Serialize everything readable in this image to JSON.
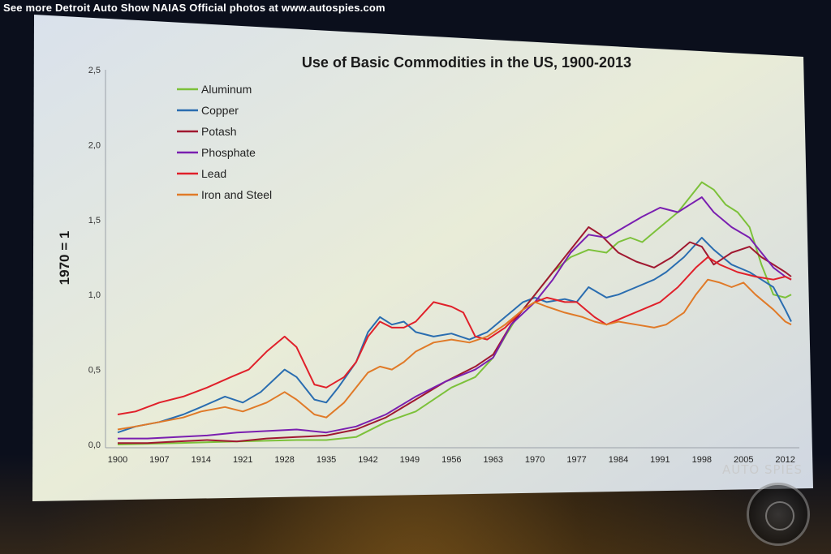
{
  "photo_credit": "See more Detroit Auto Show NAIAS Official photos at www.autospies.com",
  "watermark": "AUTO SPIES",
  "colors": {
    "aluminum": "#7cc13a",
    "copper": "#2a6db0",
    "potash": "#a01830",
    "phosphate": "#7a1fb0",
    "lead": "#e0202a",
    "iron_steel": "#e07a28"
  },
  "chart_data": {
    "type": "line",
    "title": "Use of Basic Commodities in the US, 1900-2013",
    "xlabel": "",
    "ylabel": "1970 = 1",
    "ylim": [
      0,
      2.5
    ],
    "xlim": [
      1900,
      2013
    ],
    "y_ticks": [
      "0,0",
      "0,5",
      "1,0",
      "1,5",
      "2,0",
      "2,5"
    ],
    "x_ticks": [
      "1900",
      "1907",
      "1914",
      "1921",
      "1928",
      "1935",
      "1942",
      "1949",
      "1956",
      "1963",
      "1970",
      "1977",
      "1984",
      "1991",
      "1998",
      "2005",
      "2012"
    ],
    "legend_position": "top-left",
    "grid": false,
    "series": [
      {
        "name": "Aluminum",
        "color_key": "aluminum",
        "x": [
          1900,
          1910,
          1920,
          1930,
          1935,
          1940,
          1945,
          1950,
          1953,
          1956,
          1960,
          1963,
          1965,
          1967,
          1970,
          1973,
          1976,
          1979,
          1982,
          1984,
          1986,
          1988,
          1991,
          1994,
          1996,
          1998,
          2000,
          2002,
          2004,
          2006,
          2008,
          2010,
          2012,
          2013
        ],
        "y": [
          0.0,
          0.01,
          0.02,
          0.03,
          0.03,
          0.05,
          0.15,
          0.22,
          0.3,
          0.38,
          0.45,
          0.58,
          0.72,
          0.85,
          1.0,
          1.15,
          1.25,
          1.3,
          1.28,
          1.35,
          1.38,
          1.35,
          1.45,
          1.55,
          1.65,
          1.75,
          1.7,
          1.6,
          1.55,
          1.45,
          1.2,
          1.0,
          0.98,
          1.0
        ]
      },
      {
        "name": "Copper",
        "color_key": "copper",
        "x": [
          1900,
          1903,
          1907,
          1911,
          1914,
          1918,
          1921,
          1924,
          1928,
          1930,
          1933,
          1935,
          1937,
          1940,
          1942,
          1944,
          1946,
          1948,
          1950,
          1953,
          1956,
          1959,
          1962,
          1965,
          1968,
          1970,
          1972,
          1975,
          1977,
          1979,
          1982,
          1984,
          1987,
          1990,
          1992,
          1995,
          1998,
          2000,
          2003,
          2006,
          2008,
          2010,
          2012,
          2013
        ],
        "y": [
          0.08,
          0.12,
          0.15,
          0.2,
          0.25,
          0.32,
          0.28,
          0.35,
          0.5,
          0.45,
          0.3,
          0.28,
          0.38,
          0.55,
          0.75,
          0.85,
          0.8,
          0.82,
          0.75,
          0.72,
          0.74,
          0.7,
          0.75,
          0.85,
          0.95,
          0.98,
          0.95,
          0.97,
          0.95,
          1.05,
          0.98,
          1.0,
          1.05,
          1.1,
          1.15,
          1.25,
          1.38,
          1.3,
          1.2,
          1.15,
          1.1,
          1.05,
          0.9,
          0.82
        ]
      },
      {
        "name": "Potash",
        "color_key": "potash",
        "x": [
          1900,
          1905,
          1910,
          1915,
          1920,
          1925,
          1930,
          1935,
          1940,
          1945,
          1950,
          1955,
          1960,
          1963,
          1966,
          1970,
          1973,
          1976,
          1979,
          1981,
          1984,
          1987,
          1990,
          1993,
          1996,
          1998,
          2000,
          2003,
          2006,
          2008,
          2010,
          2012,
          2013
        ],
        "y": [
          0.01,
          0.01,
          0.02,
          0.03,
          0.02,
          0.04,
          0.05,
          0.06,
          0.1,
          0.18,
          0.3,
          0.42,
          0.52,
          0.6,
          0.8,
          1.0,
          1.15,
          1.3,
          1.45,
          1.4,
          1.28,
          1.22,
          1.18,
          1.25,
          1.35,
          1.32,
          1.2,
          1.28,
          1.32,
          1.25,
          1.2,
          1.15,
          1.12
        ]
      },
      {
        "name": "Phosphate",
        "color_key": "phosphate",
        "x": [
          1900,
          1905,
          1910,
          1915,
          1920,
          1925,
          1930,
          1935,
          1940,
          1945,
          1950,
          1955,
          1960,
          1963,
          1966,
          1970,
          1973,
          1976,
          1979,
          1982,
          1985,
          1988,
          1991,
          1994,
          1996,
          1998,
          2000,
          2003,
          2006,
          2008,
          2010,
          2012,
          2013
        ],
        "y": [
          0.04,
          0.04,
          0.05,
          0.06,
          0.08,
          0.09,
          0.1,
          0.08,
          0.12,
          0.2,
          0.32,
          0.42,
          0.5,
          0.58,
          0.8,
          0.95,
          1.1,
          1.28,
          1.4,
          1.38,
          1.45,
          1.52,
          1.58,
          1.55,
          1.6,
          1.65,
          1.55,
          1.45,
          1.38,
          1.28,
          1.18,
          1.12,
          1.1
        ]
      },
      {
        "name": "Lead",
        "color_key": "lead",
        "x": [
          1900,
          1903,
          1907,
          1911,
          1915,
          1919,
          1922,
          1925,
          1928,
          1930,
          1933,
          1935,
          1938,
          1940,
          1942,
          1944,
          1946,
          1948,
          1950,
          1953,
          1956,
          1958,
          1960,
          1962,
          1965,
          1968,
          1970,
          1972,
          1975,
          1977,
          1980,
          1982,
          1985,
          1988,
          1991,
          1994,
          1997,
          1999,
          2001,
          2004,
          2007,
          2010,
          2012,
          2013
        ],
        "y": [
          0.2,
          0.22,
          0.28,
          0.32,
          0.38,
          0.45,
          0.5,
          0.62,
          0.72,
          0.65,
          0.4,
          0.38,
          0.45,
          0.55,
          0.72,
          0.82,
          0.78,
          0.78,
          0.82,
          0.95,
          0.92,
          0.88,
          0.72,
          0.7,
          0.78,
          0.9,
          0.95,
          0.98,
          0.95,
          0.95,
          0.85,
          0.8,
          0.85,
          0.9,
          0.95,
          1.05,
          1.18,
          1.25,
          1.2,
          1.15,
          1.12,
          1.1,
          1.12,
          1.1
        ]
      },
      {
        "name": "Iron and Steel",
        "color_key": "iron_steel",
        "x": [
          1900,
          1903,
          1907,
          1911,
          1914,
          1918,
          1921,
          1925,
          1928,
          1930,
          1933,
          1935,
          1938,
          1940,
          1942,
          1944,
          1946,
          1948,
          1950,
          1953,
          1956,
          1959,
          1962,
          1965,
          1968,
          1970,
          1972,
          1975,
          1978,
          1980,
          1982,
          1984,
          1987,
          1990,
          1992,
          1995,
          1997,
          1999,
          2001,
          2003,
          2005,
          2007,
          2010,
          2012,
          2013
        ],
        "y": [
          0.1,
          0.12,
          0.15,
          0.18,
          0.22,
          0.25,
          0.22,
          0.28,
          0.35,
          0.3,
          0.2,
          0.18,
          0.28,
          0.38,
          0.48,
          0.52,
          0.5,
          0.55,
          0.62,
          0.68,
          0.7,
          0.68,
          0.72,
          0.8,
          0.9,
          0.95,
          0.92,
          0.88,
          0.85,
          0.82,
          0.8,
          0.82,
          0.8,
          0.78,
          0.8,
          0.88,
          1.0,
          1.1,
          1.08,
          1.05,
          1.08,
          1.0,
          0.9,
          0.82,
          0.8
        ]
      }
    ]
  }
}
